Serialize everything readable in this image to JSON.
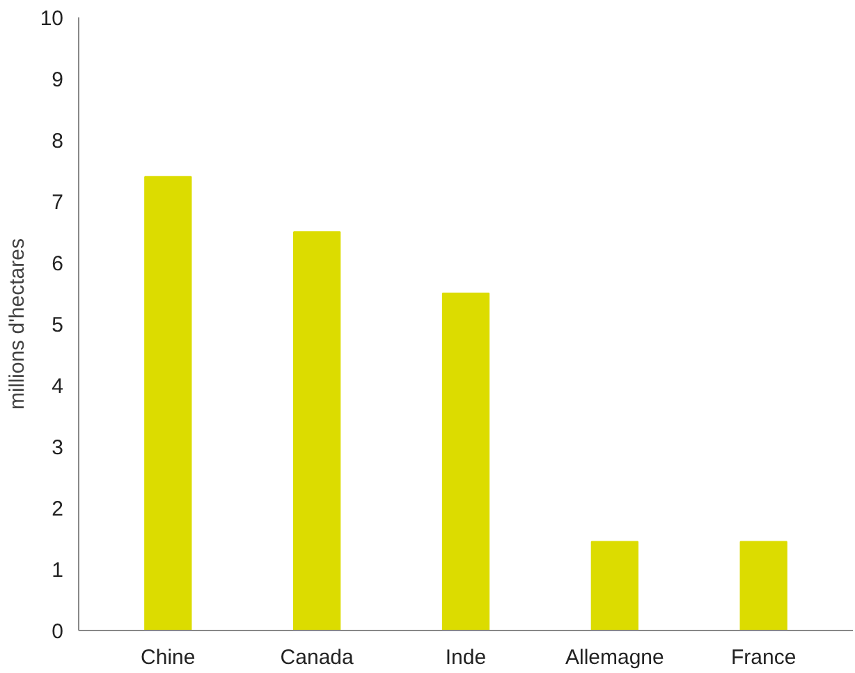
{
  "chart_data": {
    "type": "bar",
    "ylabel": "millions d'hectares",
    "categories": [
      "Chine",
      "Canada",
      "Inde",
      "Allemagne",
      "France"
    ],
    "values": [
      7.4,
      6.5,
      5.5,
      1.45,
      1.45
    ],
    "color": "#dcdc00",
    "ylim": [
      0,
      10
    ],
    "yticks": [
      0,
      1,
      2,
      3,
      4,
      5,
      6,
      7,
      8,
      9,
      10
    ],
    "grid": false
  }
}
